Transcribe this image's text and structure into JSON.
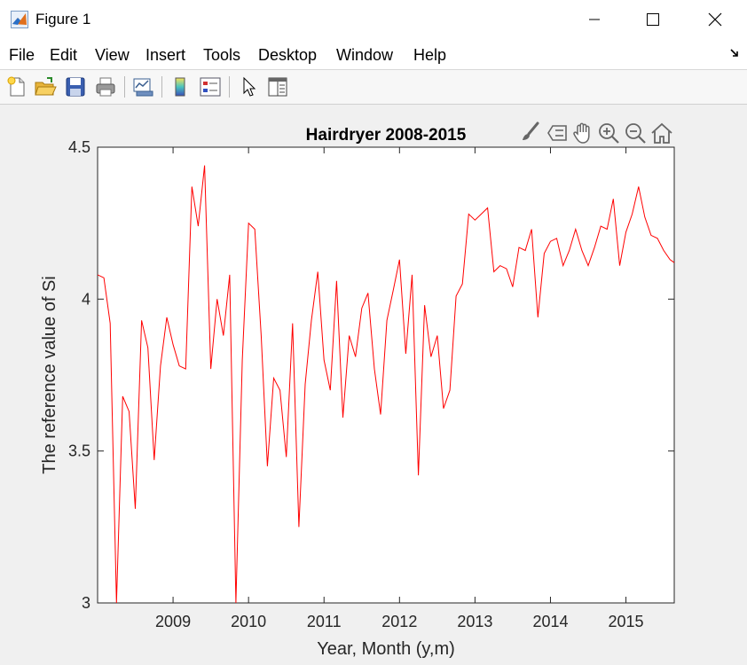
{
  "window": {
    "title": "Figure 1"
  },
  "menu": {
    "items": [
      "File",
      "Edit",
      "View",
      "Insert",
      "Tools",
      "Desktop",
      "Window",
      "Help"
    ]
  },
  "toolbar": {
    "buttons": [
      "new-figure-icon",
      "open-file-icon",
      "save-icon",
      "print-icon",
      "link-plot-icon",
      "colorbar-icon",
      "legend-icon",
      "edit-plot-arrow-icon",
      "property-inspector-icon"
    ]
  },
  "axes_toolbar": {
    "buttons": [
      "brush-icon",
      "data-tips-icon",
      "pan-hand-icon",
      "zoom-in-icon",
      "zoom-out-icon",
      "restore-home-icon"
    ]
  },
  "colors": {
    "line": "#ff0000",
    "axes_bg": "#ffffff",
    "figure_bg": "#f0f0f0"
  },
  "chart_data": {
    "type": "line",
    "title": "Hairdryer 2008-2015",
    "xlabel": "Year, Month (y,m)",
    "ylabel": "The reference value of Si",
    "xlim": [
      2008.0,
      2015.64
    ],
    "ylim": [
      3,
      4.5
    ],
    "xticks": [
      2009,
      2010,
      2011,
      2012,
      2013,
      2014,
      2015
    ],
    "xtick_labels": [
      "2009",
      "2010",
      "2011",
      "2012",
      "2013",
      "2014",
      "2015"
    ],
    "yticks": [
      3,
      3.5,
      4,
      4.5
    ],
    "ytick_labels": [
      "3",
      "3.5",
      "4",
      "4.5"
    ],
    "grid": false,
    "series": [
      {
        "x": [
          2008.0,
          2008.083,
          2008.167,
          2008.25,
          2008.333,
          2008.417,
          2008.5,
          2008.583,
          2008.667,
          2008.75,
          2008.833,
          2008.917,
          2009.0,
          2009.083,
          2009.167,
          2009.25,
          2009.333,
          2009.417,
          2009.5,
          2009.583,
          2009.667,
          2009.75,
          2009.833,
          2009.917,
          2010.0,
          2010.083,
          2010.167,
          2010.25,
          2010.333,
          2010.417,
          2010.5,
          2010.583,
          2010.667,
          2010.75,
          2010.833,
          2010.917,
          2011.0,
          2011.083,
          2011.167,
          2011.25,
          2011.333,
          2011.417,
          2011.5,
          2011.583,
          2011.667,
          2011.75,
          2011.833,
          2011.917,
          2012.0,
          2012.083,
          2012.167,
          2012.25,
          2012.333,
          2012.417,
          2012.5,
          2012.583,
          2012.667,
          2012.75,
          2012.833,
          2012.917,
          2013.0,
          2013.083,
          2013.167,
          2013.25,
          2013.333,
          2013.417,
          2013.5,
          2013.583,
          2013.667,
          2013.75,
          2013.833,
          2013.917,
          2014.0,
          2014.083,
          2014.167,
          2014.25,
          2014.333,
          2014.417,
          2014.5,
          2014.583,
          2014.667,
          2014.75,
          2014.833,
          2014.917,
          2015.0,
          2015.083,
          2015.167,
          2015.25,
          2015.333,
          2015.417,
          2015.5,
          2015.583,
          2015.64
        ],
        "y": [
          4.08,
          4.07,
          3.92,
          3.0,
          3.68,
          3.63,
          3.31,
          3.93,
          3.84,
          3.47,
          3.78,
          3.94,
          3.85,
          3.78,
          3.77,
          4.37,
          4.24,
          4.44,
          3.77,
          4.0,
          3.88,
          4.08,
          3.0,
          3.8,
          4.25,
          4.23,
          3.88,
          3.45,
          3.74,
          3.7,
          3.48,
          3.92,
          3.25,
          3.72,
          3.93,
          4.09,
          3.8,
          3.7,
          4.06,
          3.61,
          3.88,
          3.81,
          3.97,
          4.02,
          3.77,
          3.62,
          3.93,
          4.03,
          4.13,
          3.82,
          4.08,
          3.42,
          3.98,
          3.81,
          3.88,
          3.64,
          3.7,
          4.01,
          4.05,
          4.28,
          4.26,
          4.28,
          4.3,
          4.09,
          4.11,
          4.1,
          4.04,
          4.17,
          4.16,
          4.23,
          3.94,
          4.15,
          4.19,
          4.2,
          4.11,
          4.16,
          4.23,
          4.16,
          4.11,
          4.17,
          4.24,
          4.23,
          4.33,
          4.11,
          4.22,
          4.28,
          4.37,
          4.27,
          4.21,
          4.2,
          4.16,
          4.13,
          4.12
        ]
      }
    ]
  }
}
